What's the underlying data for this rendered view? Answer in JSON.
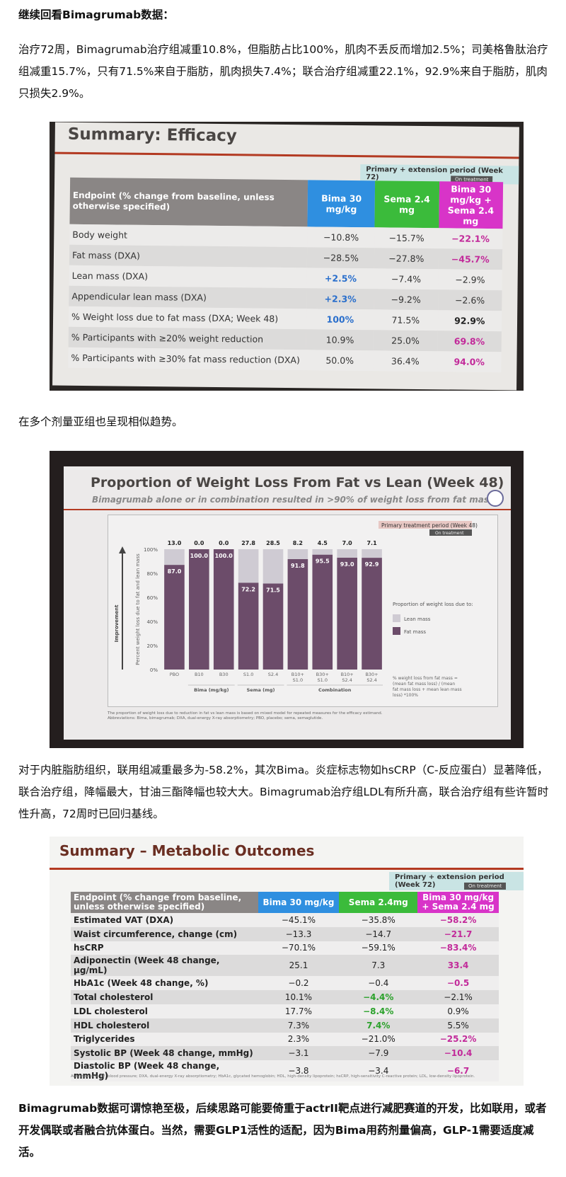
{
  "intro_heading": "继续回看Bimagrumab数据：",
  "para1": "治疗72周，Bimagrumab治疗组减重10.8%，但脂肪占比100%，肌肉不丢反而增加2.5%；司美格鲁肽治疗组减重15.7%，只有71.5%来自于脂肪，肌肉损失7.4%；联合治疗组减重22.1%，92.9%来自于脂肪，肌肉只损失2.9%。",
  "efficacy": {
    "title": "Summary: Efficacy",
    "period": "Primary + extension period (Week 72)",
    "on_treatment": "On treatment",
    "headers": [
      "Endpoint (% change from baseline, unless otherwise specified)",
      "Bima 30 mg/kg",
      "Sema 2.4 mg",
      "Bima 30 mg/kg + Sema 2.4 mg"
    ],
    "rows": [
      {
        "label": "Body weight",
        "bima": "−10.8%",
        "sema": "−15.7%",
        "combo": "−22.1%"
      },
      {
        "label": "Fat mass (DXA)",
        "bima": "−28.5%",
        "sema": "−27.8%",
        "combo": "−45.7%"
      },
      {
        "label": "Lean mass (DXA)",
        "bima": "+2.5%",
        "sema": "−7.4%",
        "combo": "−2.9%"
      },
      {
        "label": "Appendicular lean mass (DXA)",
        "bima": "+2.3%",
        "sema": "−9.2%",
        "combo": "−2.6%"
      },
      {
        "label": "% Weight loss due to fat mass (DXA; Week 48)",
        "bima": "100%",
        "sema": "71.5%",
        "combo": "92.9%"
      },
      {
        "label": "% Participants with ≥20% weight reduction",
        "bima": "10.9%",
        "sema": "25.0%",
        "combo": "69.8%"
      },
      {
        "label": "% Participants with ≥30% fat mass reduction (DXA)",
        "bima": "50.0%",
        "sema": "36.4%",
        "combo": "94.0%"
      }
    ]
  },
  "para2": "在多个剂量亚组也呈现相似趋势。",
  "chart_slide": {
    "title": "Proportion of Weight Loss From Fat vs Lean (Week 48)",
    "subtitle": "Bimagrumab alone or in combination resulted in >90% of weight loss from fat mass",
    "period": "Primary treatment period (Week 48)",
    "on_treatment": "On treatment",
    "footnote": "The proportion of weight loss due to reduction in fat vs lean mass is based on mixed model for repeated measures for the efficacy estimand. Abbreviations: Bima, bimagrumab; DXA, dual-energy X-ray absorptiometry; PBO, placebo; sema, semaglutide.",
    "formula": "% weight loss from fat mass = (mean fat mass loss) / (mean fat mass loss + mean lean mass loss) *100%"
  },
  "chart_data": {
    "type": "bar",
    "stacked": true,
    "categories": [
      "PBO",
      "B10",
      "B30",
      "S1.0",
      "S2.4",
      "B10+ S1.0",
      "B30+ S1.0",
      "B10+ S2.4",
      "B30+ S2.4"
    ],
    "groups": [
      {
        "label": "Bima (mg/kg)",
        "members": [
          "B10",
          "B30"
        ]
      },
      {
        "label": "Sema (mg)",
        "members": [
          "S1.0",
          "S2.4"
        ]
      },
      {
        "label": "Combination",
        "members": [
          "B10+ S1.0",
          "B30+ S1.0",
          "B10+ S2.4",
          "B30+ S2.4"
        ]
      }
    ],
    "series": [
      {
        "name": "Fat mass",
        "values": [
          87.0,
          100.0,
          100.0,
          72.2,
          71.5,
          91.8,
          95.5,
          93.0,
          92.9
        ],
        "color": "#6c4c6a"
      },
      {
        "name": "Lean mass",
        "values": [
          13.0,
          0.0,
          0.0,
          27.8,
          28.5,
          8.2,
          4.5,
          7.0,
          7.1
        ],
        "color": "#cfcbd3"
      }
    ],
    "ylabel": "Percent weight loss due to fat and lean mass",
    "arrow_label": "Improvement",
    "yticks": [
      "0%",
      "20%",
      "40%",
      "60%",
      "80%",
      "100%"
    ],
    "ylim": [
      0,
      100
    ],
    "legend_title": "Proportion of weight loss due to:",
    "legend_position": "right"
  },
  "para3": "对于内脏脂肪组织，联用组减重最多为-58.2%，其次Bima。炎症标志物如hsCRP（C-反应蛋白）显著降低，联合治疗组，降幅最大，甘油三酯降幅也较大大。Bimagrumab治疗组LDL有所升高，联合治疗组有些许暂时性升高，72周时已回归基线。",
  "metabolic": {
    "title": "Summary – Metabolic Outcomes",
    "period": "Primary + extension period (Week 72)",
    "on_treatment": "On treatment",
    "headers": [
      "Endpoint (% change from baseline, unless otherwise specified)",
      "Bima 30 mg/kg",
      "Sema 2.4mg",
      "Bima 30 mg/kg + Sema 2.4 mg"
    ],
    "rows": [
      {
        "label": "Estimated VAT (DXA)",
        "bima": "−45.1%",
        "sema": "−35.8%",
        "combo": "−58.2%"
      },
      {
        "label": "Waist circumference, change (cm)",
        "bima": "−13.3",
        "sema": "−14.7",
        "combo": "−21.7"
      },
      {
        "label": "hsCRP",
        "bima": "−70.1%",
        "sema": "−59.1%",
        "combo": "−83.4%"
      },
      {
        "label": "Adiponectin (Week 48 change, μg/mL)",
        "bima": "25.1",
        "sema": "7.3",
        "combo": "33.4"
      },
      {
        "label": "HbA1c (Week 48 change, %)",
        "bima": "−0.2",
        "sema": "−0.4",
        "combo": "−0.5"
      },
      {
        "label": "Total cholesterol",
        "bima": "10.1%",
        "sema": "−4.4%",
        "combo": "−2.1%"
      },
      {
        "label": "LDL cholesterol",
        "bima": "17.7%",
        "sema": "−8.4%",
        "combo": "0.9%"
      },
      {
        "label": "HDL cholesterol",
        "bima": "7.3%",
        "sema": "7.4%",
        "combo": "5.5%"
      },
      {
        "label": "Triglycerides",
        "bima": "2.3%",
        "sema": "−21.0%",
        "combo": "−25.2%"
      },
      {
        "label": "Systolic BP (Week 48 change, mmHg)",
        "bima": "−3.1",
        "sema": "−7.9",
        "combo": "−10.4"
      },
      {
        "label": "Diastolic BP (Week 48 change, mmHg)",
        "bima": "−3.8",
        "sema": "−3.4",
        "combo": "−6.7"
      }
    ],
    "abbreviations": "Abbreviations: BP, blood pressure; DXA, dual-energy X-ray absorptiometry; HbA1c, glycated hemoglobin; HDL, high-density lipoprotein; hsCRP, high-sensitivity C-reactive protein; LDL, low-density lipoprotein."
  },
  "para4": "Bimagrumab数据可谓惊艳至极，后续思路可能要倚重于actrII靶点进行减肥赛道的开发，比如联用，或者开发偶联或者融合抗体蛋白。当然，需要GLP1活性的适配，因为Bima用药剂量偏高，GLP-1需要适度减活。"
}
